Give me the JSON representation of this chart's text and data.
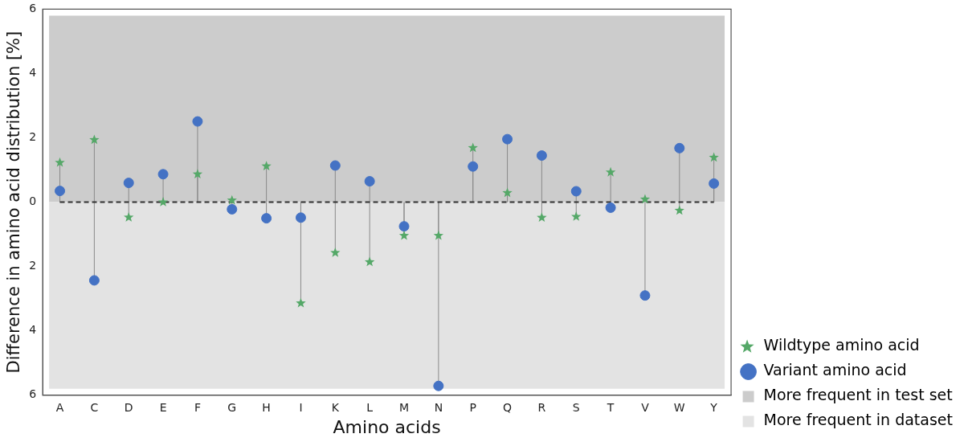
{
  "chart_data": {
    "type": "lollipop",
    "xlabel": "Amino acids",
    "ylabel": "Difference in amino acid distribution [%]",
    "categories": [
      "A",
      "C",
      "D",
      "E",
      "F",
      "G",
      "H",
      "I",
      "K",
      "L",
      "M",
      "N",
      "P",
      "Q",
      "R",
      "S",
      "T",
      "V",
      "W",
      "Y"
    ],
    "series": [
      {
        "name": "Wildtype amino acid",
        "color": "#55a868",
        "marker": "star",
        "values": [
          1.23,
          1.94,
          -0.47,
          0,
          0.87,
          0.06,
          1.12,
          -3.14,
          -1.57,
          -1.86,
          -1.04,
          -1.04,
          1.69,
          0.29,
          -0.48,
          -0.45,
          0.93,
          0.09,
          -0.26,
          1.39
        ]
      },
      {
        "name": "Variant amino acid",
        "color": "#4472c4",
        "marker": "circle",
        "values": [
          0.35,
          -2.43,
          0.6,
          0.87,
          2.51,
          -0.22,
          -0.5,
          -0.48,
          1.14,
          0.65,
          -0.75,
          -5.71,
          1.11,
          1.96,
          1.45,
          0.34,
          -0.17,
          -2.9,
          1.68,
          0.58
        ]
      }
    ],
    "ylim": [
      -6,
      6
    ],
    "yticks": [
      {
        "value": -6,
        "label": "6"
      },
      {
        "value": -4,
        "label": "4"
      },
      {
        "value": -2,
        "label": "2"
      },
      0,
      2,
      4,
      6
    ],
    "bands": [
      {
        "axis": "y",
        "from": 0,
        "to": 5.8,
        "label": "More frequent in test set",
        "color": "#cccccc"
      },
      {
        "axis": "y",
        "from": -5.8,
        "to": 0,
        "label": "More frequent in dataset",
        "color": "#e3e3e3"
      }
    ],
    "ref_lines": [
      {
        "axis": "y",
        "value": 0,
        "color": "#333333",
        "line_style": "dashed"
      }
    ],
    "grid": false,
    "legend": "right"
  }
}
